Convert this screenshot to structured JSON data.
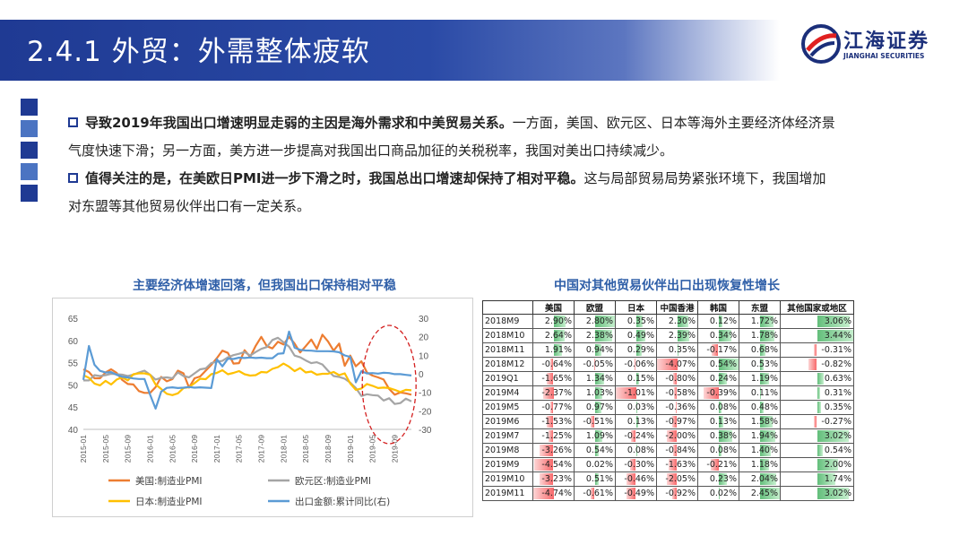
{
  "header": {
    "title": "2.4.1 外贸：外需整体疲软"
  },
  "logo": {
    "name_cn": "江海证券",
    "name_en": "JIANGHAI SECURITIES"
  },
  "colors": {
    "brand": "#1f3a93",
    "title_blue": "#2f5fa8",
    "us": "#ed7d31",
    "eu": "#a5a5a5",
    "jp": "#ffc000",
    "exports": "#5b9bd5",
    "pos": "#63be7b",
    "neg": "#f8696b"
  },
  "bullets": [
    {
      "bold": "导致2019年我国出口增速明显走弱的主因是海外需求和中美贸易关系。",
      "text": "一方面，美国、欧元区、日本等海外主要经济体经济景气度快速下滑；另一方面，美方进一步提高对我国出口商品加征的关税税率，我国对美出口持续减少。"
    },
    {
      "bold": "值得关注的是，在美欧日PMI进一步下滑之时，我国总出口增速却保持了相对平稳。",
      "text": "这与局部贸易局势紧张环境下，我国增加对东盟等其他贸易伙伴出口有一定关系。"
    }
  ],
  "chart_data": [
    {
      "type": "line",
      "title": "主要经济体增速回落，但我国出口保持相对平稳",
      "x_ticks": [
        "2015-01",
        "2015-05",
        "2015-09",
        "2016-01",
        "2016-05",
        "2016-09",
        "2017-01",
        "2017-05",
        "2017-09",
        "2018-01",
        "2018-05",
        "2018-09",
        "2019-01",
        "2019-05",
        "2019-09"
      ],
      "y_left": {
        "ticks": [
          65,
          60,
          55,
          50,
          45,
          40
        ],
        "ylim": [
          40,
          65
        ]
      },
      "y_right": {
        "ticks": [
          30,
          20,
          10,
          0,
          -10,
          -20,
          -30
        ],
        "ylim": [
          -30,
          30
        ]
      },
      "legend": [
        "美国:制造业PMI",
        "欧元区:制造业PMI",
        "日本:制造业PMI",
        "出口金额:累计同比(右)"
      ],
      "series": [
        {
          "name": "美国:制造业PMI",
          "axis": "left",
          "values": [
            53.5,
            52.9,
            51.5,
            51.5,
            52.8,
            53.5,
            52.7,
            51.1,
            50.2,
            50.1,
            48.6,
            48.2,
            48.2,
            49.5,
            51.8,
            50.8,
            51.3,
            53.2,
            52.6,
            49.4,
            51.5,
            51.9,
            53.2,
            54.5,
            56.0,
            57.7,
            57.2,
            54.8,
            54.9,
            57.8,
            56.3,
            58.8,
            60.8,
            58.7,
            58.2,
            59.7,
            59.1,
            60.8,
            59.3,
            57.3,
            58.7,
            60.2,
            58.1,
            61.3,
            59.8,
            57.7,
            59.3,
            54.3,
            56.6,
            54.2,
            55.3,
            52.8,
            52.1,
            51.7,
            51.2,
            49.1,
            47.8,
            48.3,
            48.1,
            47.8
          ]
        },
        {
          "name": "欧元区:制造业PMI",
          "axis": "left",
          "values": [
            51.0,
            51.0,
            52.2,
            52.0,
            52.2,
            52.5,
            52.4,
            52.3,
            52.0,
            52.3,
            52.8,
            53.2,
            52.3,
            51.2,
            51.6,
            51.7,
            51.5,
            52.8,
            52.0,
            51.7,
            52.6,
            53.5,
            53.7,
            54.9,
            55.2,
            55.4,
            56.2,
            56.7,
            57.0,
            57.4,
            56.6,
            57.4,
            58.1,
            58.5,
            60.1,
            60.6,
            59.6,
            58.6,
            56.6,
            56.2,
            55.5,
            54.9,
            55.1,
            54.6,
            53.2,
            52.0,
            51.8,
            51.4,
            50.5,
            49.3,
            47.5,
            47.9,
            47.7,
            47.6,
            46.5,
            47.0,
            45.7,
            45.9,
            46.9,
            46.3
          ]
        },
        {
          "name": "日本:制造业PMI",
          "axis": "left",
          "values": [
            52.2,
            51.6,
            50.3,
            49.9,
            50.9,
            50.1,
            51.2,
            51.7,
            51.0,
            52.4,
            52.6,
            52.6,
            52.3,
            50.1,
            49.1,
            48.0,
            47.7,
            48.1,
            49.3,
            49.5,
            50.4,
            51.4,
            51.3,
            52.4,
            52.7,
            53.3,
            52.4,
            52.7,
            53.1,
            52.4,
            52.1,
            52.2,
            52.9,
            52.8,
            53.6,
            54.0,
            54.8,
            54.1,
            53.1,
            53.8,
            52.8,
            53.0,
            52.3,
            52.5,
            52.5,
            52.9,
            52.2,
            52.6,
            50.3,
            48.9,
            49.2,
            50.2,
            49.8,
            49.3,
            49.4,
            49.3,
            48.9,
            48.4,
            48.9,
            48.8
          ]
        },
        {
          "name": "出口金额:累计同比(右)",
          "axis": "right",
          "values": [
            -3.3,
            15.0,
            4.9,
            1.6,
            0.7,
            0.9,
            -0.6,
            -1.6,
            -2.0,
            -2.5,
            -2.8,
            -2.8,
            -11.2,
            -18.8,
            -9.7,
            -7.6,
            -7.3,
            -7.7,
            -7.5,
            -7.1,
            -7.5,
            -7.3,
            -7.5,
            -7.7,
            7.9,
            4.0,
            8.2,
            8.0,
            8.7,
            8.5,
            8.8,
            8.5,
            8.7,
            8.4,
            8.4,
            10.8,
            11.1,
            22.8,
            14.1,
            12.9,
            12.6,
            12.5,
            12.2,
            12.2,
            12.2,
            12.1,
            11.6,
            9.9,
            9.1,
            -4.6,
            1.4,
            0.2,
            0.4,
            0.1,
            0.6,
            0.4,
            -0.2,
            -0.2,
            -0.6,
            -0.9
          ]
        }
      ]
    },
    {
      "type": "table",
      "title": "中国对其他贸易伙伴出口出现恢复性增长",
      "columns": [
        "",
        "美国",
        "欧盟",
        "日本",
        "中国香港",
        "韩国",
        "东盟",
        "其他国家或地区"
      ],
      "rows": [
        {
          "label": "2018M9",
          "values": [
            "2.90%",
            "2.80%",
            "0.35%",
            "2.30%",
            "0.12%",
            "1.72%",
            "3.06%"
          ]
        },
        {
          "label": "2018M10",
          "values": [
            "2.64%",
            "2.38%",
            "0.49%",
            "2.39%",
            "0.34%",
            "1.78%",
            "3.44%"
          ]
        },
        {
          "label": "2018M11",
          "values": [
            "1.91%",
            "0.94%",
            "0.29%",
            "0.35%",
            "-0.17%",
            "0.68%",
            "-0.31%"
          ]
        },
        {
          "label": "2018M12",
          "values": [
            "-0.64%",
            "-0.05%",
            "-0.06%",
            "-4.07%",
            "0.54%",
            "0.53%",
            "-0.82%"
          ]
        },
        {
          "label": "2019Q1",
          "values": [
            "-1.65%",
            "1.34%",
            "0.15%",
            "-0.80%",
            "0.24%",
            "1.19%",
            "0.63%"
          ]
        },
        {
          "label": "2019M4",
          "values": [
            "-2.37%",
            "1.03%",
            "-1.01%",
            "-0.58%",
            "-0.39%",
            "0.11%",
            "0.31%"
          ]
        },
        {
          "label": "2019M5",
          "values": [
            "-0.77%",
            "0.97%",
            "0.03%",
            "-0.36%",
            "0.08%",
            "0.48%",
            "0.35%"
          ]
        },
        {
          "label": "2019M6",
          "values": [
            "-1.53%",
            "-0.51%",
            "0.13%",
            "-0.97%",
            "0.13%",
            "1.58%",
            "-0.27%"
          ]
        },
        {
          "label": "2019M7",
          "values": [
            "-1.25%",
            "1.09%",
            "-0.24%",
            "-2.00%",
            "0.38%",
            "1.94%",
            "3.02%"
          ]
        },
        {
          "label": "2019M8",
          "values": [
            "-3.26%",
            "0.54%",
            "0.08%",
            "-0.84%",
            "0.08%",
            "1.40%",
            "0.54%"
          ]
        },
        {
          "label": "2019M9",
          "values": [
            "-4.54%",
            "0.02%",
            "-0.30%",
            "-1.63%",
            "-0.21%",
            "1.18%",
            "2.00%"
          ]
        },
        {
          "label": "2019M10",
          "values": [
            "-3.23%",
            "0.51%",
            "-0.46%",
            "-2.05%",
            "0.23%",
            "2.04%",
            "1.74%"
          ]
        },
        {
          "label": "2019M11",
          "values": [
            "-4.74%",
            "-0.61%",
            "-0.49%",
            "-0.92%",
            "0.02%",
            "2.45%",
            "3.02%"
          ]
        }
      ]
    }
  ]
}
